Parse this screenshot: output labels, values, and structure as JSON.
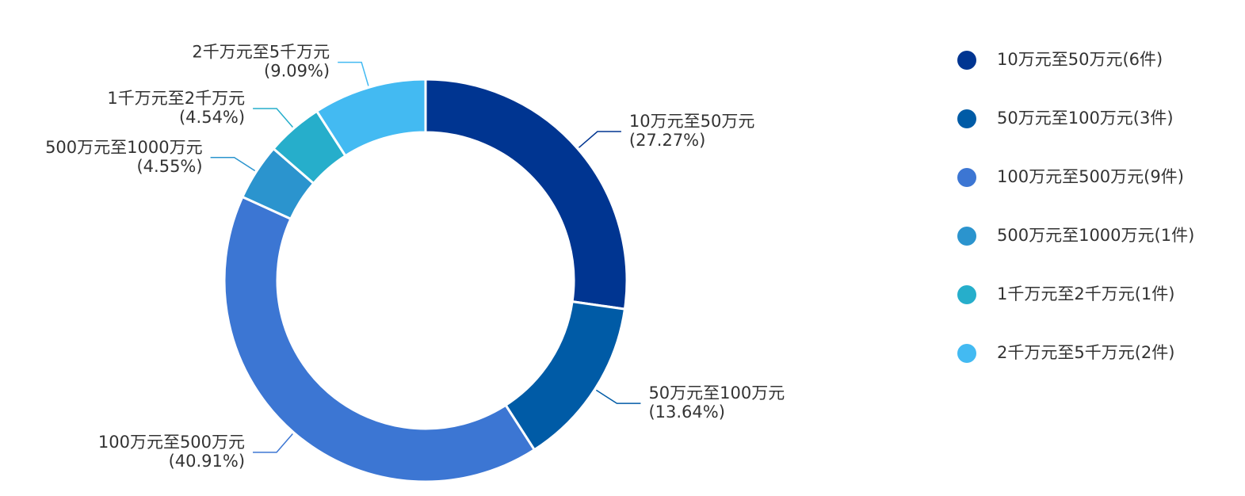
{
  "chart_data": {
    "type": "pie",
    "donut": true,
    "categories": [
      "10万元至50万元",
      "50万元至100万元",
      "100万元至500万元",
      "500万元至1000万元",
      "1千万元至2千万元",
      "2千万元至5千万元"
    ],
    "values": [
      6,
      3,
      9,
      1,
      1,
      2
    ],
    "percents": [
      27.27,
      13.64,
      40.91,
      4.55,
      4.54,
      9.09
    ],
    "data_labels": [
      "(27.27%)",
      "(13.64%)",
      "(40.91%)",
      "(4.55%)",
      "(4.54%)",
      "(9.09%)"
    ],
    "colors": [
      "#003591",
      "#005BA6",
      "#3C76D3",
      "#2B94CE",
      "#26AECB",
      "#43BAF2"
    ],
    "legend": {
      "position": "right",
      "entries": [
        "10万元至50万元(6件)",
        "50万元至100万元(3件)",
        "100万元至500万元(9件)",
        "500万元至1000万元(1件)",
        "1千万元至2千万元(1件)",
        "2千万元至5千万元(2件)"
      ]
    }
  }
}
